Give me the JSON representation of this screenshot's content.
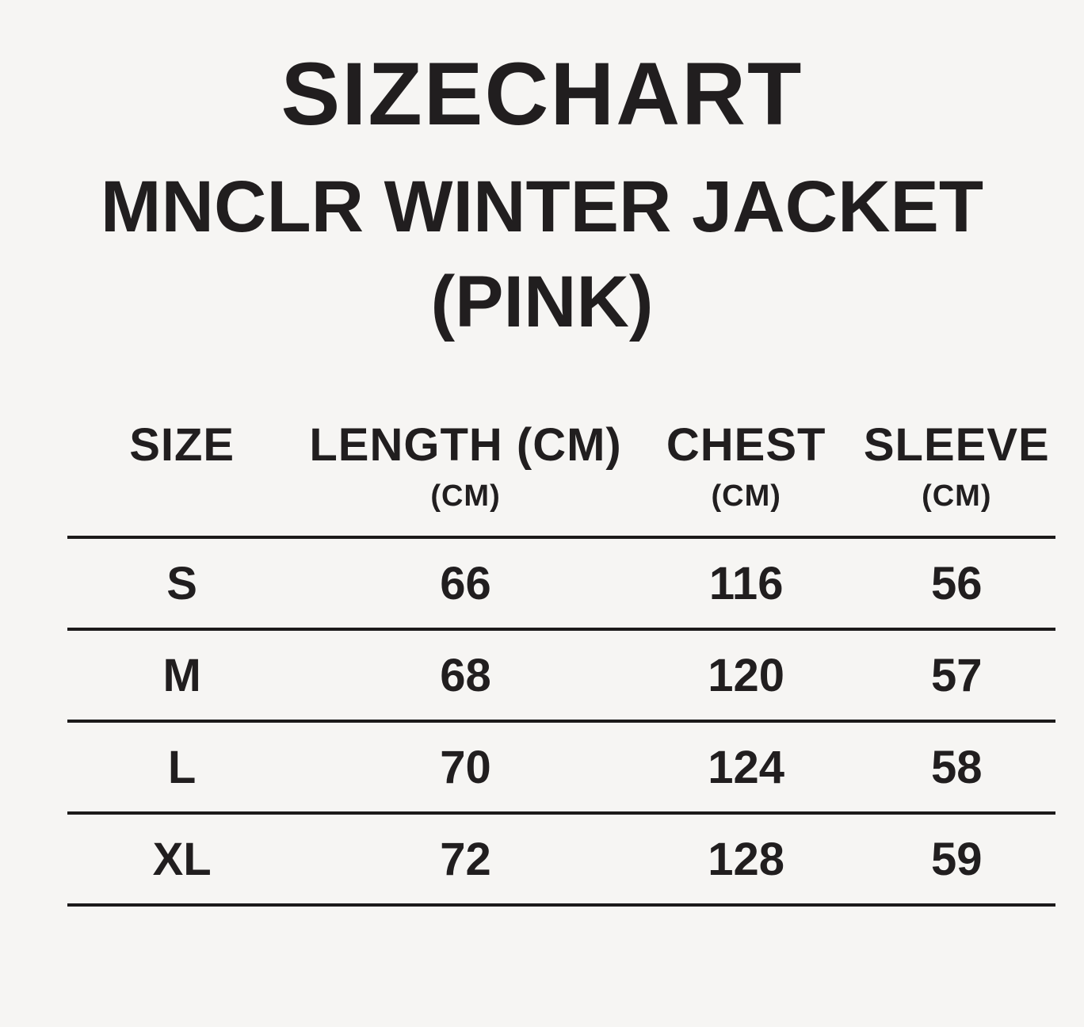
{
  "page": {
    "background_color": "#f6f5f3",
    "text_color": "#211e1f",
    "rule_color": "#1c1a1a"
  },
  "title": {
    "line1": "SIZECHART",
    "line2": "MNCLR WINTER JACKET",
    "line3": "(PINK)"
  },
  "size_table": {
    "headers": [
      {
        "label": "SIZE",
        "unit": ""
      },
      {
        "label": "LENGTH (CM)",
        "unit": "(CM)"
      },
      {
        "label": "CHEST",
        "unit": "(CM)"
      },
      {
        "label": "SLEEVE",
        "unit": "(CM)"
      }
    ],
    "rows": [
      {
        "size": "S",
        "length": "66",
        "chest": "116",
        "sleeve": "56"
      },
      {
        "size": "M",
        "length": "68",
        "chest": "120",
        "sleeve": "57"
      },
      {
        "size": "L",
        "length": "70",
        "chest": "124",
        "sleeve": "58"
      },
      {
        "size": "XL",
        "length": "72",
        "chest": "128",
        "sleeve": "59"
      }
    ]
  },
  "chart_data": {
    "type": "table",
    "title": "SIZECHART MNCLR WINTER JACKET (PINK)",
    "columns": [
      "SIZE",
      "LENGTH (CM)",
      "CHEST (CM)",
      "SLEEVE (CM)"
    ],
    "rows": [
      [
        "S",
        66,
        116,
        56
      ],
      [
        "M",
        68,
        120,
        57
      ],
      [
        "L",
        70,
        124,
        58
      ],
      [
        "XL",
        72,
        128,
        59
      ]
    ]
  }
}
